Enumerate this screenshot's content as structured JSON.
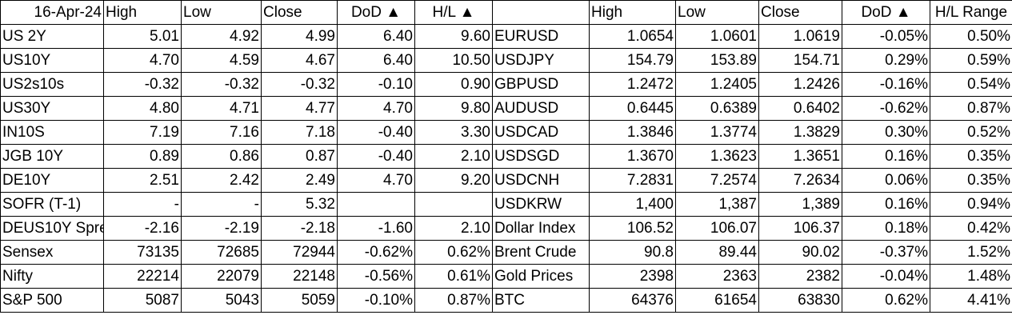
{
  "left_headers": [
    "16-Apr-24",
    "High",
    "Low",
    "Close",
    "DoD ▲",
    "H/L ▲"
  ],
  "right_headers": [
    "",
    "High",
    "Low",
    "Close",
    "DoD ▲",
    "H/L Range"
  ],
  "left_rows": [
    [
      "US 2Y",
      "5.01",
      "4.92",
      "4.99",
      "6.40",
      "9.60"
    ],
    [
      "US10Y",
      "4.70",
      "4.59",
      "4.67",
      "6.40",
      "10.50"
    ],
    [
      "US2s10s",
      "-0.32",
      "-0.32",
      "-0.32",
      "-0.10",
      "0.90"
    ],
    [
      "US30Y",
      "4.80",
      "4.71",
      "4.77",
      "4.70",
      "9.80"
    ],
    [
      "IN10S",
      "7.19",
      "7.16",
      "7.18",
      "-0.40",
      "3.30"
    ],
    [
      "JGB 10Y",
      "0.89",
      "0.86",
      "0.87",
      "-0.40",
      "2.10"
    ],
    [
      "DE10Y",
      "2.51",
      "2.42",
      "2.49",
      "4.70",
      "9.20"
    ],
    [
      "SOFR (T-1)",
      "-",
      "-",
      "5.32",
      "",
      ""
    ],
    [
      "DEUS10Y Spre",
      "-2.16",
      "-2.19",
      "-2.18",
      "-1.60",
      "2.10"
    ],
    [
      "Sensex",
      "73135",
      "72685",
      "72944",
      "-0.62%",
      "0.62%"
    ],
    [
      "Nifty",
      "22214",
      "22079",
      "22148",
      "-0.56%",
      "0.61%"
    ],
    [
      "S&P 500",
      "5087",
      "5043",
      "5059",
      "-0.10%",
      "0.87%"
    ]
  ],
  "right_rows": [
    [
      "EURUSD",
      "1.0654",
      "1.0601",
      "1.0619",
      "-0.05%",
      "0.50%"
    ],
    [
      "USDJPY",
      "154.79",
      "153.89",
      "154.71",
      "0.29%",
      "0.59%"
    ],
    [
      "GBPUSD",
      "1.2472",
      "1.2405",
      "1.2426",
      "-0.16%",
      "0.54%"
    ],
    [
      "AUDUSD",
      "0.6445",
      "0.6389",
      "0.6402",
      "-0.62%",
      "0.87%"
    ],
    [
      "USDCAD",
      "1.3846",
      "1.3774",
      "1.3829",
      "0.30%",
      "0.52%"
    ],
    [
      "USDSGD",
      "1.3670",
      "1.3623",
      "1.3651",
      "0.16%",
      "0.35%"
    ],
    [
      "USDCNH",
      "7.2831",
      "7.2574",
      "7.2634",
      "0.06%",
      "0.35%"
    ],
    [
      "USDKRW",
      "1,400",
      "1,387",
      "1,389",
      "0.16%",
      "0.94%"
    ],
    [
      "Dollar Index",
      "106.52",
      "106.07",
      "106.37",
      "0.18%",
      "0.42%"
    ],
    [
      "Brent Crude",
      "90.8",
      "89.44",
      "90.02",
      "-0.37%",
      "1.52%"
    ],
    [
      "Gold Prices",
      "2398",
      "2363",
      "2382",
      "-0.04%",
      "1.48%"
    ],
    [
      "BTC",
      "64376",
      "61654",
      "63830",
      "0.62%",
      "4.41%"
    ]
  ]
}
